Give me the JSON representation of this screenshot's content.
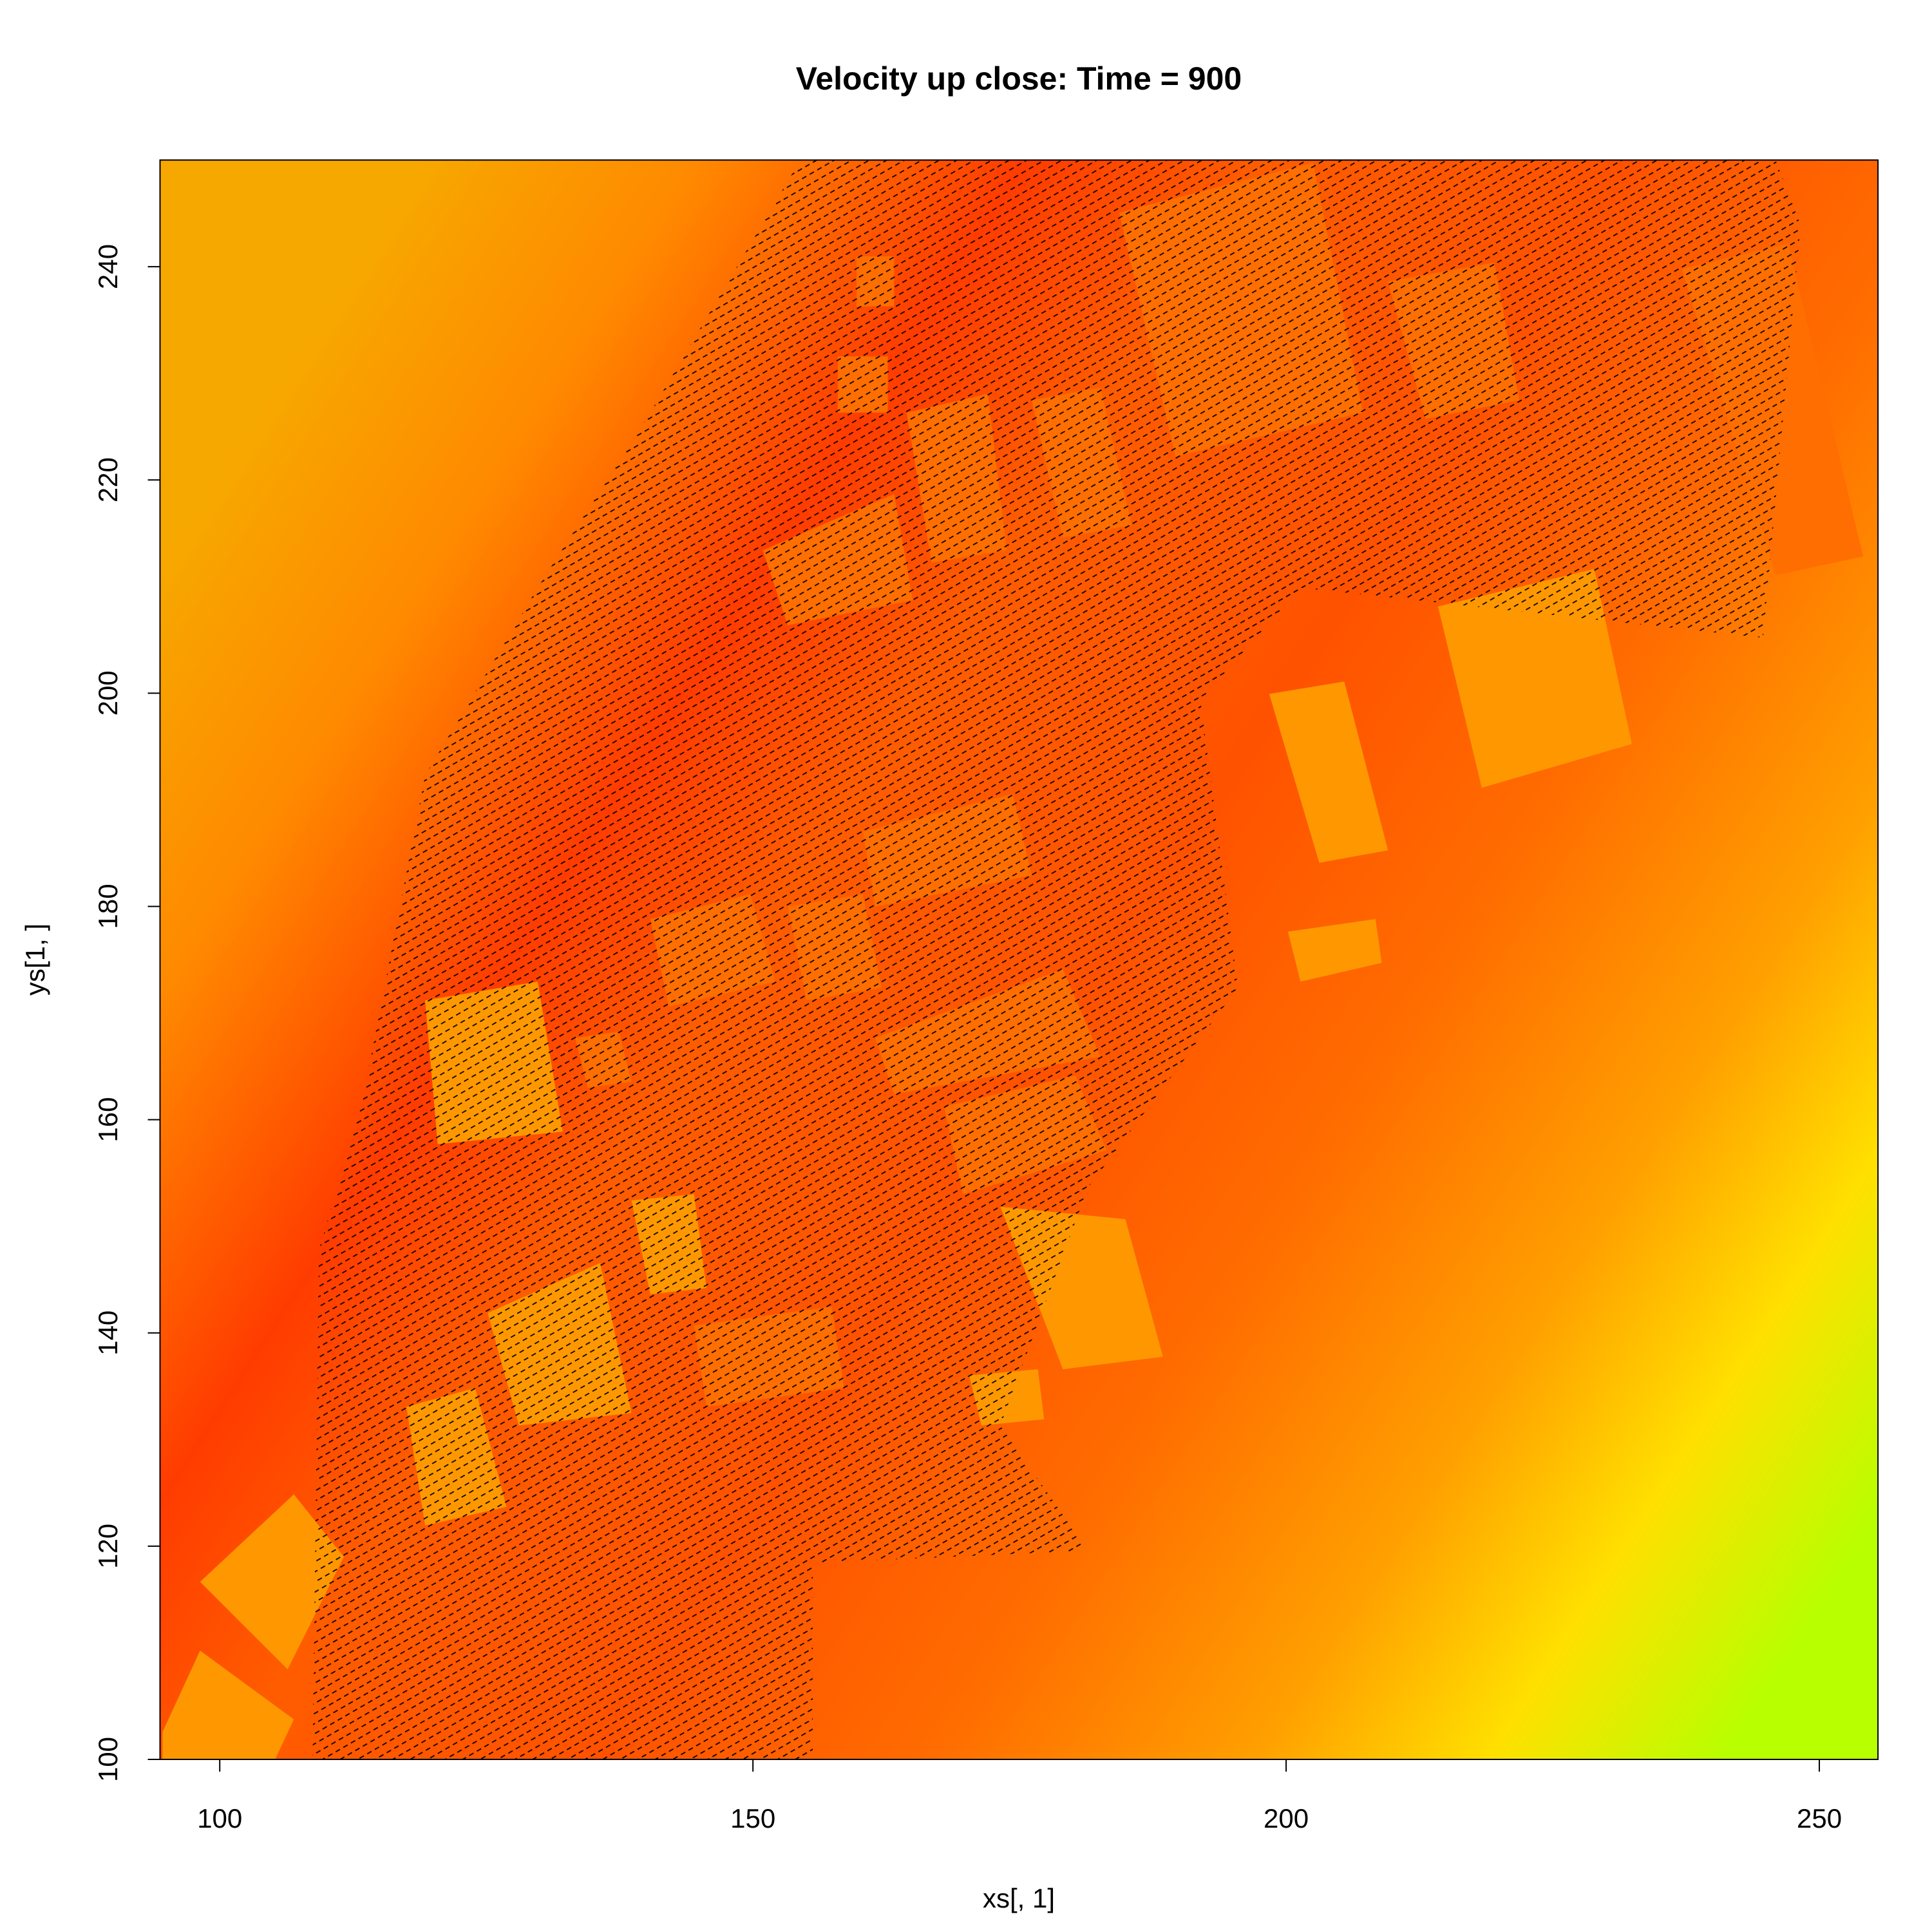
{
  "chart_data": {
    "type": "image",
    "title": "Velocity up close: Time = 900",
    "xlabel": "xs[, 1]",
    "ylabel": "ys[1, ]",
    "xlim": [
      94.4,
      255.5
    ],
    "ylim": [
      100,
      250
    ],
    "xticks": [
      100,
      150,
      200,
      250
    ],
    "yticks": [
      100,
      120,
      140,
      160,
      180,
      200,
      220,
      240
    ]
  }
}
